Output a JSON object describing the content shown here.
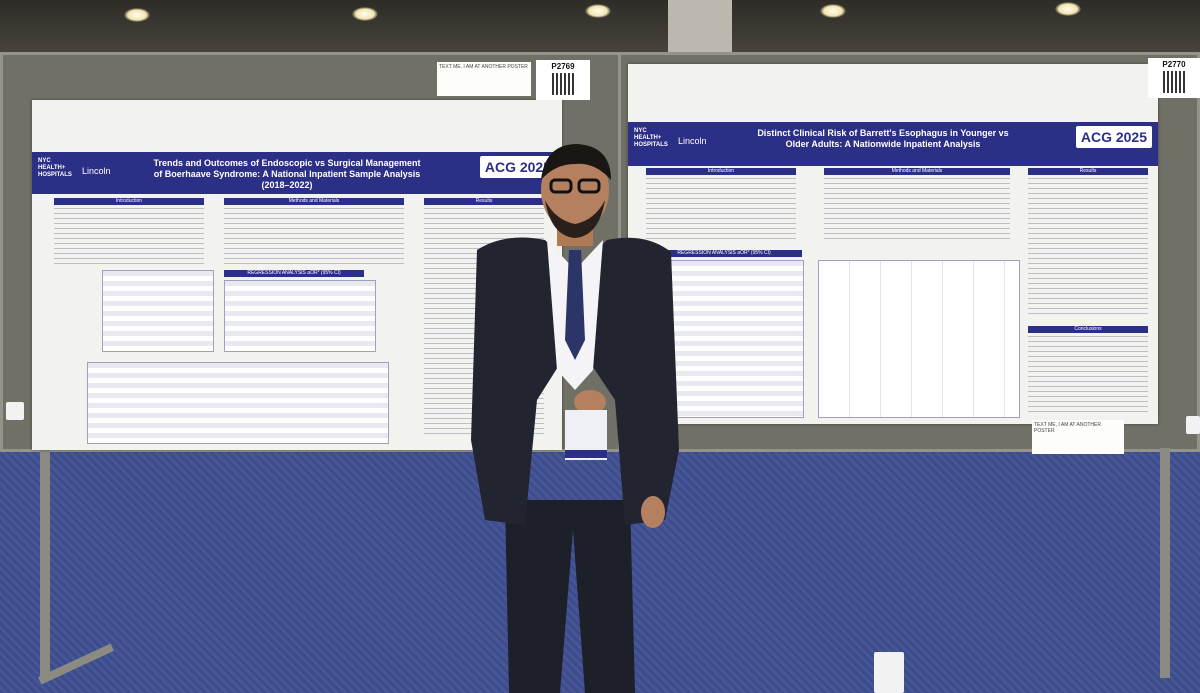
{
  "left_poster": {
    "number": "P2769",
    "org_lines": [
      "NYC",
      "HEALTH+",
      "HOSPITALS"
    ],
    "lincoln": "Lincoln",
    "title": "Trends and Outcomes of Endoscopic vs Surgical Management of Boerhaave Syndrome: A National Inpatient Sample Analysis (2018–2022)",
    "logo": "ACG 2025",
    "sections": [
      "Introduction",
      "Methods and Materials",
      "Results"
    ],
    "table_title": "REGRESSION ANALYSIS aOR* (95% CI)",
    "note_text": "TEXT ME, I AM AT ANOTHER POSTER"
  },
  "right_poster": {
    "number": "P2770",
    "org_lines": [
      "NYC",
      "HEALTH+",
      "HOSPITALS"
    ],
    "lincoln": "Lincoln",
    "title": "Distinct Clinical Risk of Barrett's Esophagus in Younger vs Older Adults: A Nationwide Inpatient Analysis",
    "logo": "ACG 2025",
    "sections": [
      "Introduction",
      "Methods and Materials",
      "Results",
      "Conclusions"
    ],
    "table_title": "REGRESSION ANALYSIS aOR* (95% CI)",
    "note_text": "TEXT ME, I AM AT ANOTHER POSTER"
  },
  "colors": {
    "poster_header": "#2c2f86",
    "carpet": "#3d4c8a",
    "suit": "#1d2028"
  }
}
